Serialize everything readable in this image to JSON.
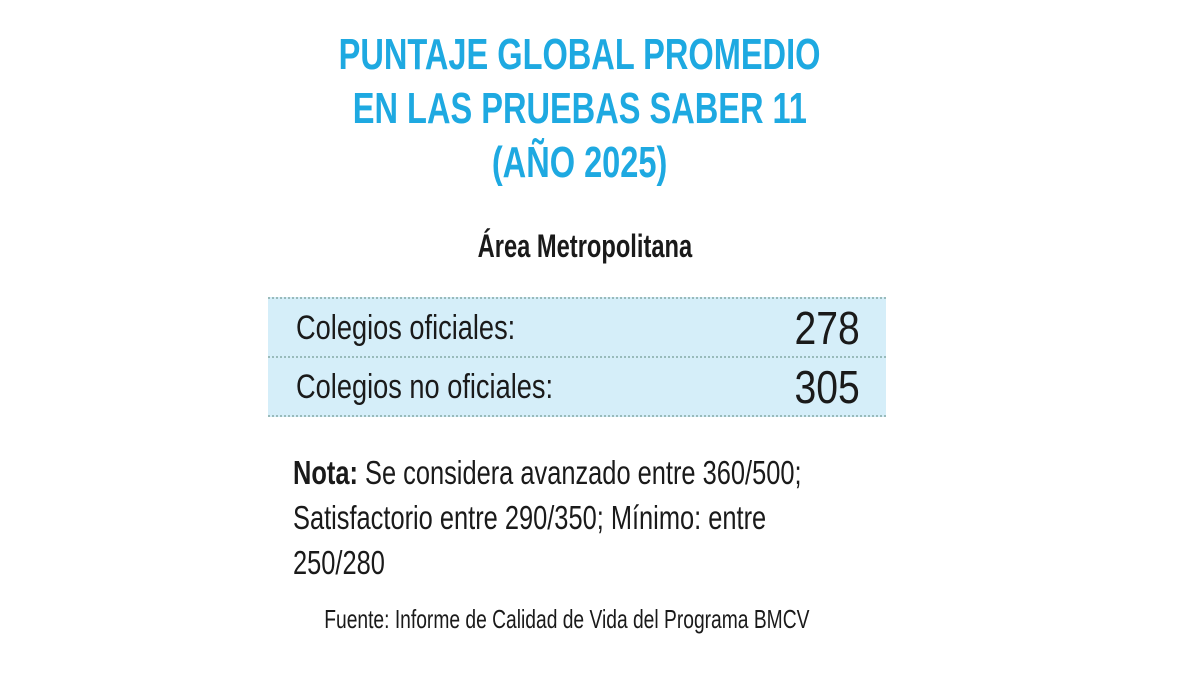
{
  "header": {
    "title_lines": [
      "PUNTAJE GLOBAL PROMEDIO",
      "EN LAS PRUEBAS SABER 11",
      "(AÑO 2025)"
    ],
    "subtitle": "Área Metropolitana"
  },
  "table": {
    "rows": [
      [
        "Colegios oficiales:",
        "278"
      ],
      [
        "Colegios no oficiales:",
        "305"
      ]
    ]
  },
  "note": {
    "label": "Nota:",
    "text": "Se considera avanzado entre 360/500; Satisfactorio entre 290/350; Mínimo: entre 250/280"
  },
  "source": "Fuente: Informe de Calidad de Vida del Programa BMCV"
}
